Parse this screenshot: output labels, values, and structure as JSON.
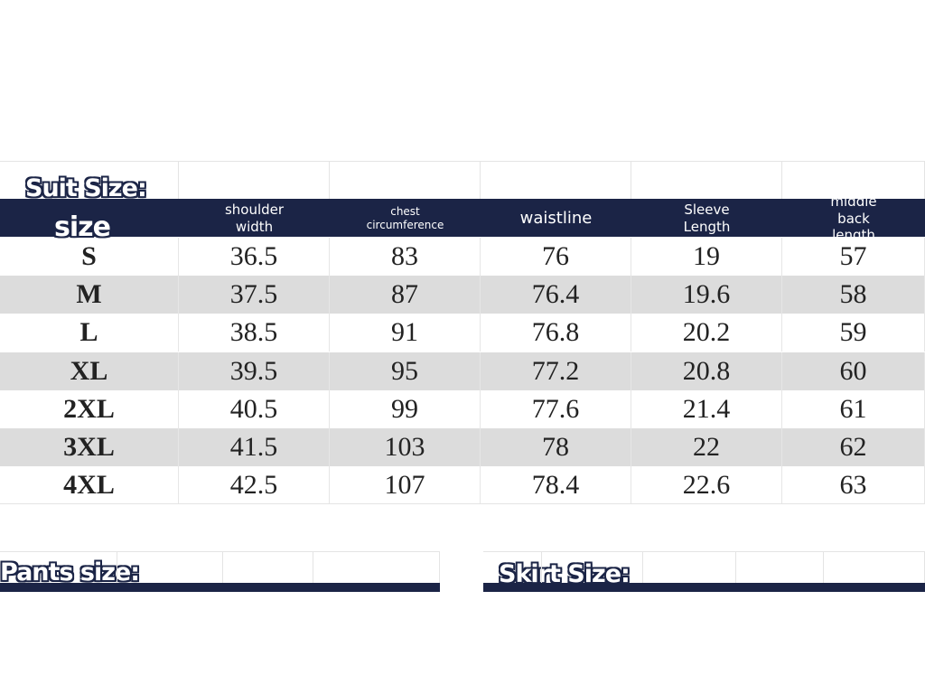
{
  "suit": {
    "title": "Suit Size:",
    "headers": [
      "size",
      "shoulder width",
      "chest circumference",
      "waistline",
      "Sleeve Length",
      "middle back length"
    ],
    "rows": [
      [
        "S",
        36.5,
        83,
        76,
        19,
        57
      ],
      [
        "M",
        37.5,
        87,
        76.4,
        19.6,
        58
      ],
      [
        "L",
        38.5,
        91,
        76.8,
        20.2,
        59
      ],
      [
        "XL",
        39.5,
        95,
        77.2,
        20.8,
        60
      ],
      [
        "2XL",
        40.5,
        99,
        77.6,
        21.4,
        61
      ],
      [
        "3XL",
        41.5,
        103,
        78,
        22,
        62
      ],
      [
        "4XL",
        42.5,
        107,
        78.4,
        22.6,
        63
      ]
    ]
  },
  "pants": {
    "title": "Pants size:"
  },
  "skirt": {
    "title": "Skirt Size:"
  }
}
